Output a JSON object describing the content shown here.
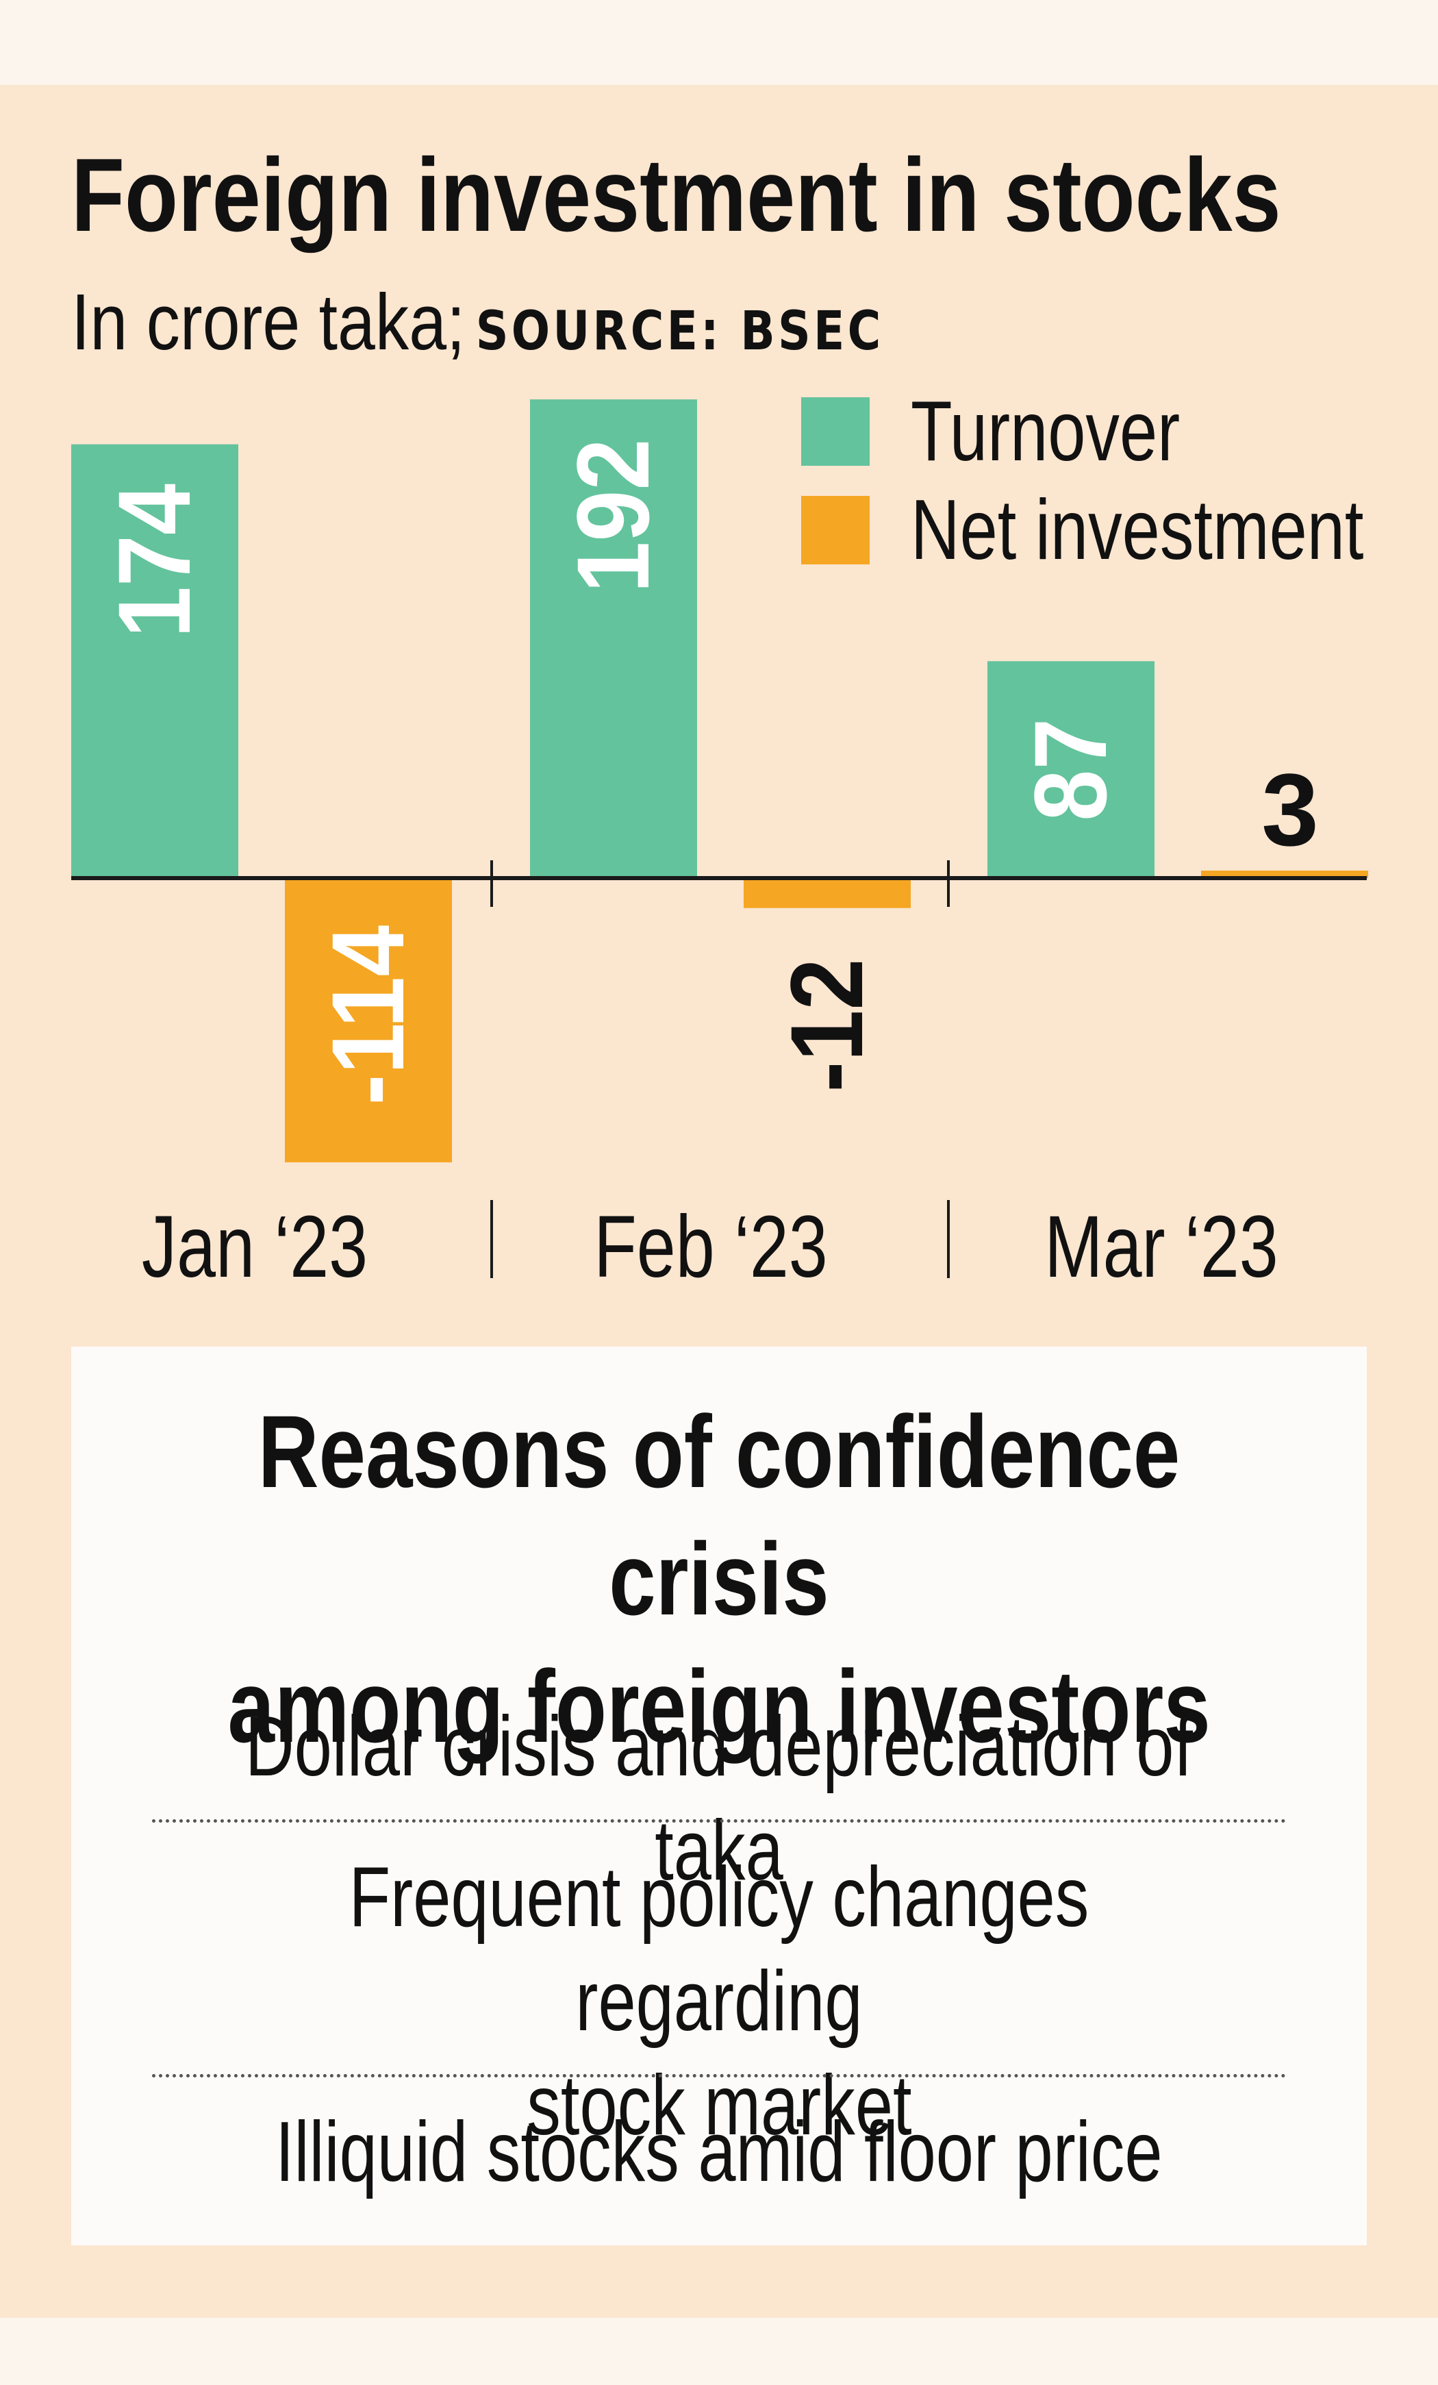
{
  "title": "Foreign investment in stocks",
  "subtitle_unit": "In crore taka;",
  "subtitle_source": "SOURCE: BSEC",
  "colors": {
    "turnover": "#63c39d",
    "net_investment": "#f5a623",
    "background": "#fbe6d0",
    "text": "#111111"
  },
  "chart_data": {
    "type": "bar",
    "categories": [
      "Jan ‘23",
      "Feb ‘23",
      "Mar ‘23"
    ],
    "series": [
      {
        "name": "Turnover",
        "values": [
          174,
          192,
          87
        ],
        "labels": [
          "174",
          "192",
          "87"
        ]
      },
      {
        "name": "Net investment",
        "values": [
          -114,
          -12,
          3
        ],
        "labels": [
          "-114",
          "-12",
          "3"
        ]
      }
    ],
    "legend": "top-right",
    "grid": false
  },
  "reasons": {
    "title_line1": "Reasons of confidence crisis",
    "title_line2": "among foreign investors",
    "items": [
      {
        "line1": "Dollar crisis and depreciation of taka"
      },
      {
        "line1": "Frequent policy changes regarding",
        "line2": "stock market"
      },
      {
        "line1": "Illiquid stocks amid floor price"
      }
    ]
  }
}
